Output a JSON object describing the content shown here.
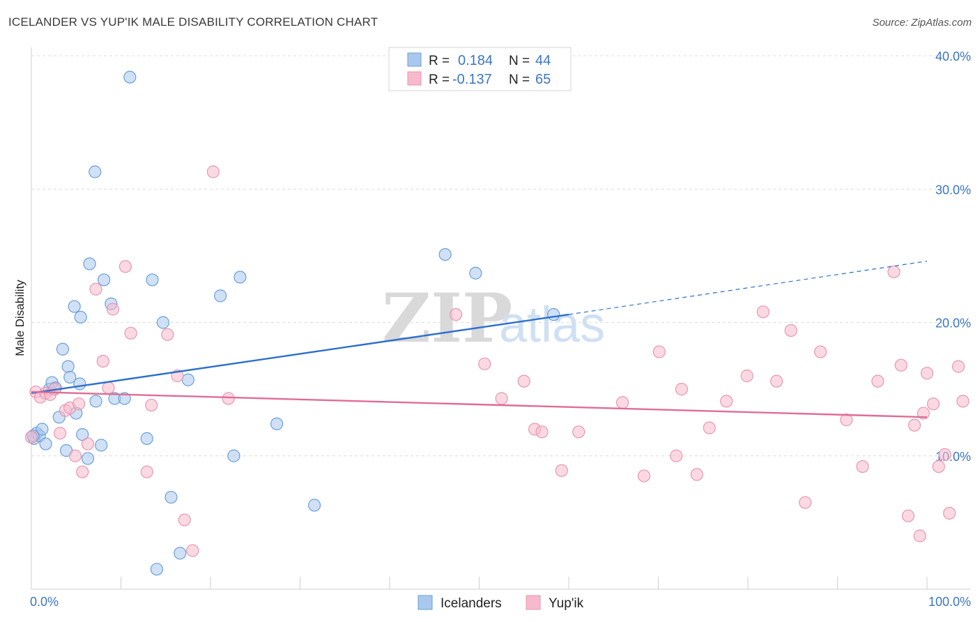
{
  "title": "ICELANDER VS YUP'IK MALE DISABILITY CORRELATION CHART",
  "source": "Source: ZipAtlas.com",
  "watermark": {
    "zip": "ZIP",
    "atlas": "atlas"
  },
  "legend_top": {
    "rows": [
      {
        "r_label": "R =",
        "r_value": "0.184",
        "n_label": "N =",
        "n_value": "44",
        "color": "#aac8ee"
      },
      {
        "r_label": "R =",
        "r_value": "-0.137",
        "n_label": "N =",
        "n_value": "65",
        "color": "#f7b9cc"
      }
    ]
  },
  "legend_bottom": [
    {
      "label": "Icelanders",
      "color": "#aac8ee"
    },
    {
      "label": "Yup'ik",
      "color": "#f7b9cc"
    }
  ],
  "chart_data": {
    "type": "scatter",
    "title": "ICELANDER VS YUP'IK MALE DISABILITY CORRELATION CHART",
    "xlabel": "",
    "ylabel": "Male Disability",
    "xlim": [
      0,
      100
    ],
    "ylim": [
      0,
      40
    ],
    "x_tick_labels": [
      {
        "value": 0,
        "label": "0.0%"
      },
      {
        "value": 100,
        "label": "100.0%"
      }
    ],
    "y_tick_labels": [
      {
        "value": 10,
        "label": "10.0%"
      },
      {
        "value": 20,
        "label": "20.0%"
      },
      {
        "value": 30,
        "label": "30.0%"
      },
      {
        "value": 40,
        "label": "40.0%"
      }
    ],
    "grid": "horizontal-dashed",
    "legend_placement": "top-center",
    "series": [
      {
        "name": "Icelanders",
        "color": "#aac8ee",
        "stroke": "#6a9fd8",
        "trend_color": "#2c6fcc",
        "trend": {
          "x0": 0,
          "y0": 14.7,
          "x1": 60,
          "y1": 20.6,
          "dash_to_x": 100,
          "dash_to_y": 24.6
        },
        "points": [
          [
            0.3,
            11.3
          ],
          [
            0.6,
            11.7
          ],
          [
            0.9,
            11.5
          ],
          [
            1.2,
            12.0
          ],
          [
            1.6,
            10.9
          ],
          [
            2.0,
            15.0
          ],
          [
            2.3,
            15.5
          ],
          [
            2.7,
            15.1
          ],
          [
            3.1,
            12.9
          ],
          [
            3.5,
            18.0
          ],
          [
            3.9,
            10.4
          ],
          [
            4.1,
            16.7
          ],
          [
            4.3,
            15.9
          ],
          [
            5.0,
            13.2
          ],
          [
            5.4,
            15.4
          ],
          [
            5.7,
            11.6
          ],
          [
            6.3,
            9.8
          ],
          [
            4.8,
            21.2
          ],
          [
            5.5,
            20.4
          ],
          [
            6.5,
            24.4
          ],
          [
            7.1,
            31.3
          ],
          [
            7.2,
            14.1
          ],
          [
            7.8,
            10.8
          ],
          [
            8.1,
            23.2
          ],
          [
            8.9,
            21.4
          ],
          [
            9.3,
            14.3
          ],
          [
            10.4,
            14.3
          ],
          [
            11.0,
            38.4
          ],
          [
            12.9,
            11.3
          ],
          [
            13.5,
            23.2
          ],
          [
            14.0,
            1.5
          ],
          [
            14.7,
            20.0
          ],
          [
            15.6,
            6.9
          ],
          [
            16.6,
            2.7
          ],
          [
            17.5,
            15.7
          ],
          [
            21.1,
            22.0
          ],
          [
            22.6,
            10.0
          ],
          [
            23.3,
            23.4
          ],
          [
            27.4,
            12.4
          ],
          [
            31.6,
            6.3
          ],
          [
            46.2,
            25.1
          ],
          [
            49.6,
            23.7
          ],
          [
            58.3,
            20.6
          ],
          [
            0.2,
            11.5
          ]
        ]
      },
      {
        "name": "Yup'ik",
        "color": "#f7b9cc",
        "stroke": "#e896ae",
        "trend_color": "#e06c96",
        "trend": {
          "x0": 0,
          "y0": 14.8,
          "x1": 100,
          "y1": 12.9
        },
        "points": [
          [
            0.5,
            14.8
          ],
          [
            1.0,
            14.4
          ],
          [
            1.6,
            14.7
          ],
          [
            2.1,
            14.6
          ],
          [
            2.6,
            15.0
          ],
          [
            3.2,
            11.7
          ],
          [
            3.8,
            13.4
          ],
          [
            4.3,
            13.6
          ],
          [
            4.9,
            10.0
          ],
          [
            5.3,
            13.9
          ],
          [
            5.7,
            8.8
          ],
          [
            6.3,
            10.9
          ],
          [
            7.2,
            22.5
          ],
          [
            8.0,
            17.1
          ],
          [
            8.6,
            15.1
          ],
          [
            9.1,
            21.0
          ],
          [
            10.5,
            24.2
          ],
          [
            11.1,
            19.2
          ],
          [
            12.9,
            8.8
          ],
          [
            13.4,
            13.8
          ],
          [
            15.2,
            19.1
          ],
          [
            16.3,
            16.0
          ],
          [
            17.1,
            5.2
          ],
          [
            18.0,
            2.9
          ],
          [
            20.3,
            31.3
          ],
          [
            22.0,
            14.3
          ],
          [
            47.4,
            20.6
          ],
          [
            50.6,
            16.9
          ],
          [
            52.5,
            14.3
          ],
          [
            55.0,
            15.6
          ],
          [
            56.2,
            12.0
          ],
          [
            57.0,
            11.8
          ],
          [
            59.2,
            8.9
          ],
          [
            61.1,
            11.8
          ],
          [
            66.0,
            14.0
          ],
          [
            68.4,
            8.5
          ],
          [
            70.1,
            17.8
          ],
          [
            72.0,
            10.0
          ],
          [
            72.6,
            15.0
          ],
          [
            74.3,
            8.6
          ],
          [
            75.7,
            12.1
          ],
          [
            77.6,
            14.1
          ],
          [
            79.9,
            16.0
          ],
          [
            81.7,
            20.8
          ],
          [
            83.2,
            15.6
          ],
          [
            84.8,
            19.4
          ],
          [
            86.4,
            6.5
          ],
          [
            88.1,
            17.8
          ],
          [
            91.0,
            12.7
          ],
          [
            92.8,
            9.2
          ],
          [
            94.5,
            15.6
          ],
          [
            96.3,
            23.8
          ],
          [
            97.1,
            16.8
          ],
          [
            97.9,
            5.5
          ],
          [
            98.6,
            12.3
          ],
          [
            99.2,
            4.0
          ],
          [
            99.6,
            13.2
          ],
          [
            100.0,
            16.2
          ],
          [
            100.7,
            13.9
          ],
          [
            101.3,
            9.2
          ],
          [
            102.0,
            10.1
          ],
          [
            102.5,
            5.7
          ],
          [
            103.5,
            16.7
          ],
          [
            104.0,
            14.1
          ],
          [
            0.0,
            11.4
          ]
        ]
      }
    ]
  }
}
